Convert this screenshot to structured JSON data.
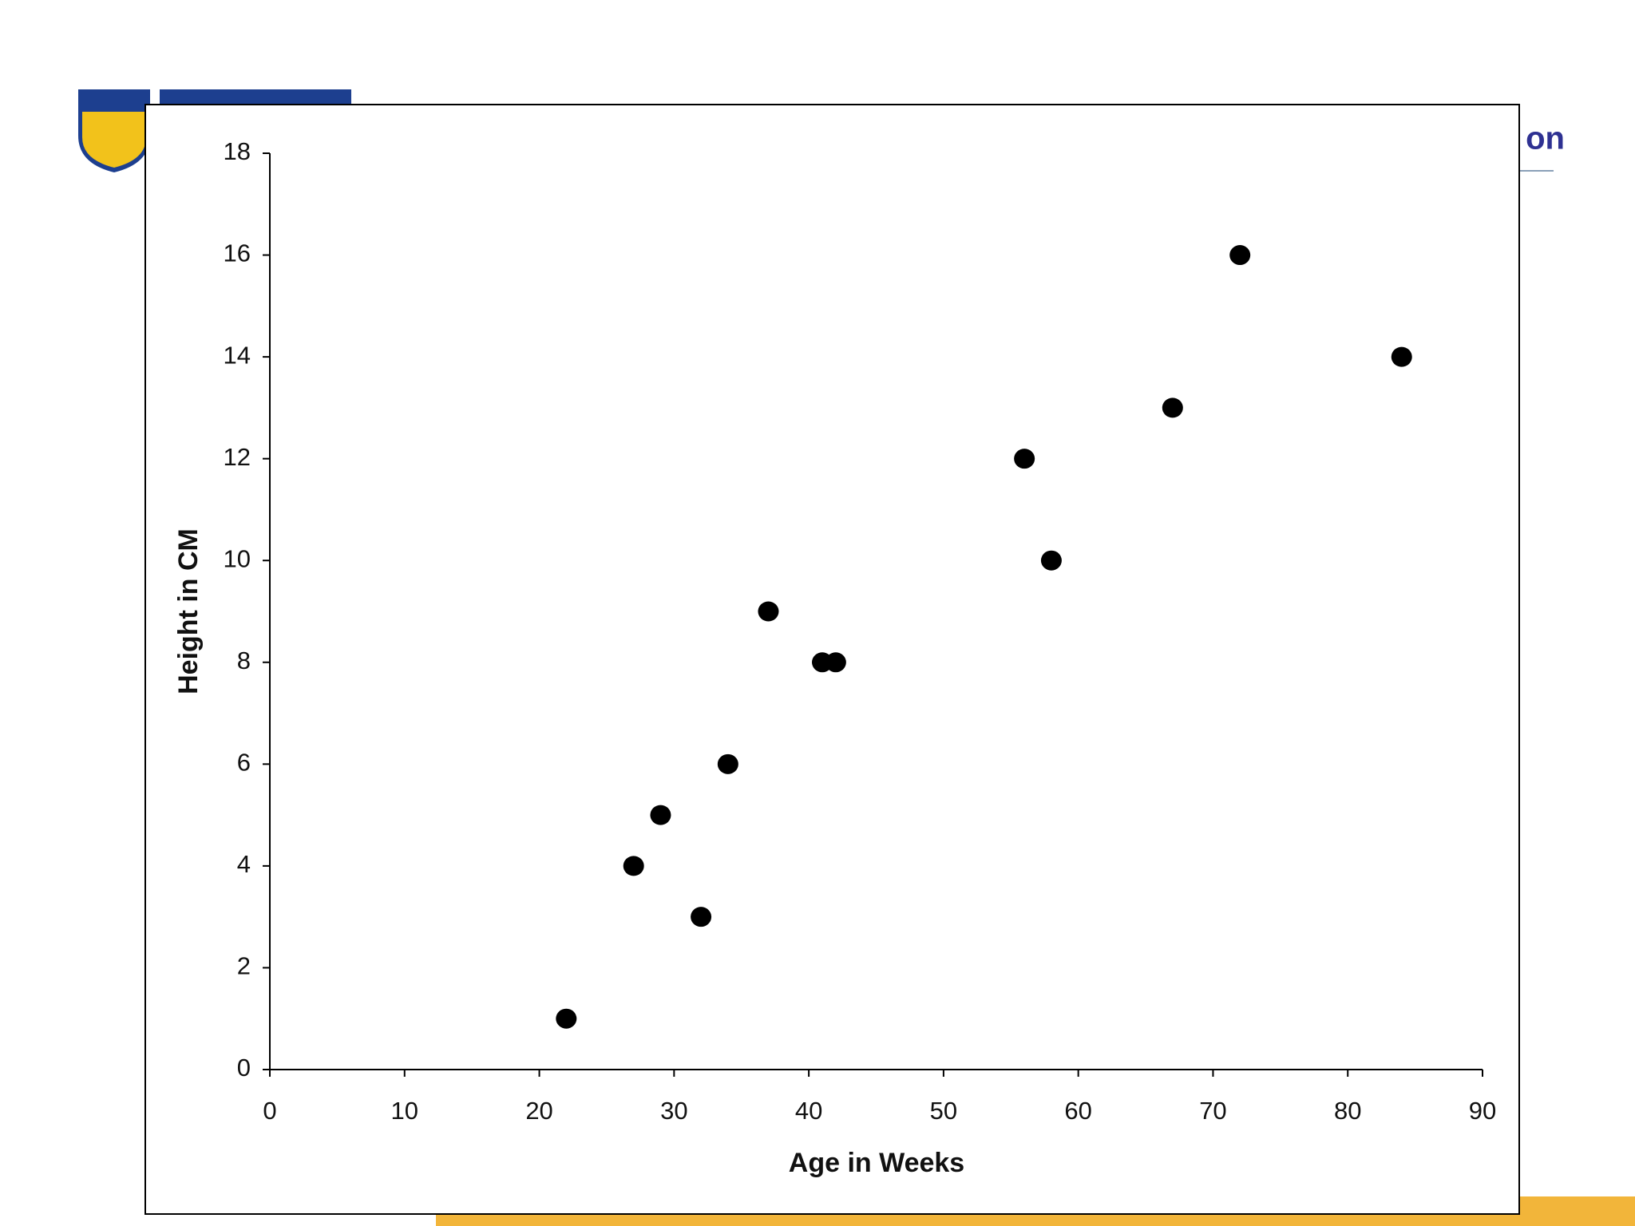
{
  "slide": {
    "title_fragment": "on"
  },
  "chart_data": {
    "type": "scatter",
    "x_label": "Age in Weeks",
    "y_label": "Height in CM",
    "x": [
      22,
      27,
      29,
      32,
      34,
      37,
      41,
      42,
      56,
      58,
      67,
      72,
      84
    ],
    "series": [
      {
        "color": "#000000",
        "values": [
          1,
          4,
          5,
          3,
          6,
          9,
          8,
          8,
          12,
          10,
          13,
          16,
          14
        ]
      }
    ],
    "xlim": [
      0,
      90
    ],
    "xticks": [
      0,
      10,
      20,
      30,
      40,
      50,
      60,
      70,
      80,
      90
    ],
    "ylim": [
      0,
      18
    ],
    "yticks": [
      0,
      2,
      4,
      6,
      8,
      10,
      12,
      14,
      16,
      18
    ],
    "grid": false
  }
}
